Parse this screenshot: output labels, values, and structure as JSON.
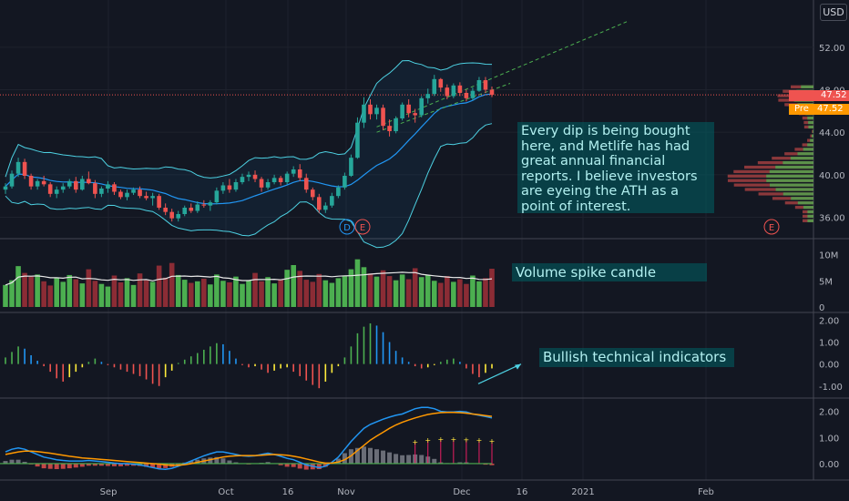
{
  "currency_button": "USD",
  "annotations": {
    "main": "Every dip is being bought here, and Metlife has had great annual financial reports. I believe investors are eyeing the ATH as a point of interest.",
    "volume": "Volume spike candle",
    "indicators": "Bullish technical indicators"
  },
  "price_tags": {
    "last": "47.52",
    "pre_label": "Pre",
    "pre_value": "47.52"
  },
  "event_markers": [
    "D",
    "E",
    "E"
  ],
  "colors": {
    "up": "#26a69a",
    "down": "#ef5350",
    "bollinger": "#4dd0e1",
    "ma": "#2196f3",
    "volume_up": "#4caf50",
    "volume_down": "#8b2c35",
    "macd_fast": "#2196f3",
    "macd_slow": "#ff9800",
    "trend_line": "#4caf50",
    "annotation_bg": "#006064"
  },
  "chart_data": {
    "type": "candlestick",
    "x_axis": {
      "ticks": [
        "Sep",
        "Oct",
        "16",
        "Nov",
        "Dec",
        "16",
        "2021",
        "Feb"
      ]
    },
    "price_pane": {
      "y_ticks": [
        52.0,
        48.0,
        44.0,
        40.0,
        36.0
      ],
      "y_range": [
        34.5,
        55.5
      ],
      "last_price": 47.52,
      "candles": [
        [
          38.6,
          39.2,
          38.2,
          38.9
        ],
        [
          38.9,
          40.4,
          38.7,
          40.1
        ],
        [
          40.1,
          41.6,
          39.8,
          41.2
        ],
        [
          41.2,
          41.5,
          39.6,
          39.9
        ],
        [
          39.9,
          40.1,
          38.6,
          38.9
        ],
        [
          38.9,
          39.6,
          38.6,
          39.4
        ],
        [
          39.4,
          39.9,
          38.9,
          39.1
        ],
        [
          39.1,
          39.3,
          37.9,
          38.2
        ],
        [
          38.2,
          38.9,
          37.8,
          38.6
        ],
        [
          38.6,
          39.2,
          38.3,
          38.9
        ],
        [
          38.9,
          39.6,
          38.7,
          39.4
        ],
        [
          39.4,
          39.8,
          38.3,
          38.6
        ],
        [
          38.6,
          39.9,
          38.5,
          39.6
        ],
        [
          39.6,
          40.3,
          39.1,
          39.2
        ],
        [
          39.2,
          39.5,
          37.8,
          38.2
        ],
        [
          38.2,
          38.9,
          37.9,
          38.7
        ],
        [
          38.7,
          39.4,
          38.3,
          39.1
        ],
        [
          39.1,
          39.3,
          38.1,
          38.4
        ],
        [
          38.4,
          38.6,
          37.7,
          37.9
        ],
        [
          37.9,
          38.6,
          37.6,
          38.3
        ],
        [
          38.3,
          38.8,
          38.1,
          38.6
        ],
        [
          38.6,
          38.9,
          37.8,
          38.0
        ],
        [
          38.0,
          38.4,
          37.6,
          37.8
        ],
        [
          37.8,
          38.3,
          37.1,
          38.0
        ],
        [
          38.0,
          38.2,
          36.7,
          36.9
        ],
        [
          36.9,
          37.3,
          36.2,
          36.5
        ],
        [
          36.5,
          36.8,
          35.6,
          35.9
        ],
        [
          35.9,
          36.6,
          35.6,
          36.3
        ],
        [
          36.3,
          37.1,
          36.1,
          36.9
        ],
        [
          36.9,
          37.3,
          36.4,
          36.6
        ],
        [
          36.6,
          37.5,
          36.4,
          37.2
        ],
        [
          37.2,
          37.6,
          36.9,
          37.1
        ],
        [
          37.1,
          37.6,
          36.6,
          37.4
        ],
        [
          37.4,
          38.8,
          37.2,
          38.5
        ],
        [
          38.5,
          39.3,
          38.2,
          39.0
        ],
        [
          39.0,
          39.6,
          38.3,
          38.6
        ],
        [
          38.6,
          39.6,
          38.4,
          39.3
        ],
        [
          39.3,
          40.1,
          39.1,
          39.8
        ],
        [
          39.8,
          40.3,
          39.4,
          40.0
        ],
        [
          40.0,
          40.4,
          39.3,
          39.6
        ],
        [
          39.6,
          39.8,
          38.4,
          38.8
        ],
        [
          38.8,
          39.6,
          38.6,
          39.3
        ],
        [
          39.3,
          40.0,
          39.1,
          39.7
        ],
        [
          39.7,
          39.9,
          39.0,
          39.3
        ],
        [
          39.3,
          40.3,
          39.1,
          40.1
        ],
        [
          40.1,
          40.8,
          39.8,
          40.5
        ],
        [
          40.5,
          41.0,
          39.4,
          39.7
        ],
        [
          39.7,
          40.1,
          38.3,
          38.6
        ],
        [
          38.6,
          38.8,
          37.6,
          37.9
        ],
        [
          37.9,
          38.2,
          36.4,
          36.7
        ],
        [
          36.7,
          37.4,
          36.4,
          37.1
        ],
        [
          37.1,
          38.3,
          36.9,
          38.0
        ],
        [
          38.0,
          39.0,
          37.8,
          38.8
        ],
        [
          38.8,
          40.2,
          38.6,
          39.9
        ],
        [
          39.9,
          41.9,
          39.8,
          41.6
        ],
        [
          41.6,
          45.4,
          41.5,
          44.9
        ],
        [
          44.9,
          47.3,
          44.4,
          46.6
        ],
        [
          46.6,
          47.1,
          45.2,
          45.7
        ],
        [
          45.7,
          46.6,
          45.2,
          46.3
        ],
        [
          46.3,
          46.6,
          44.2,
          44.6
        ],
        [
          44.6,
          45.2,
          43.6,
          44.1
        ],
        [
          44.1,
          45.5,
          43.9,
          45.3
        ],
        [
          45.3,
          46.8,
          45.1,
          46.6
        ],
        [
          46.6,
          47.1,
          45.4,
          45.8
        ],
        [
          45.8,
          46.2,
          44.9,
          45.6
        ],
        [
          45.6,
          47.4,
          45.4,
          47.2
        ],
        [
          47.2,
          48.1,
          46.7,
          47.6
        ],
        [
          47.6,
          49.4,
          47.4,
          49.0
        ],
        [
          49.0,
          49.1,
          47.8,
          48.2
        ],
        [
          48.2,
          48.5,
          47.1,
          47.4
        ],
        [
          47.4,
          48.6,
          47.2,
          48.4
        ],
        [
          48.4,
          48.7,
          47.4,
          47.7
        ],
        [
          47.7,
          48.0,
          46.9,
          47.2
        ],
        [
          47.2,
          48.2,
          47.0,
          47.9
        ],
        [
          47.9,
          49.2,
          47.8,
          48.9
        ],
        [
          48.9,
          49.2,
          47.7,
          48.0
        ],
        [
          48.0,
          48.3,
          47.3,
          47.52
        ]
      ]
    },
    "volume_pane": {
      "y_ticks": [
        "10M",
        "5M",
        "0"
      ],
      "y_range": [
        0,
        12
      ],
      "values": [
        4.2,
        5.1,
        7.8,
        6.5,
        5.8,
        6.2,
        4.9,
        4.1,
        5.6,
        4.8,
        6.1,
        5.3,
        4.5,
        7.2,
        5.0,
        4.4,
        3.9,
        6.0,
        4.7,
        5.5,
        4.2,
        6.4,
        5.1,
        4.8,
        7.9,
        5.6,
        8.4,
        6.1,
        5.2,
        4.6,
        4.9,
        5.4,
        4.3,
        6.2,
        5.0,
        4.7,
        5.8,
        4.4,
        5.1,
        6.5,
        4.9,
        5.7,
        4.5,
        5.3,
        7.1,
        8.0,
        6.9,
        5.2,
        4.8,
        6.3,
        5.1,
        4.6,
        5.5,
        6.0,
        7.2,
        9.1,
        7.6,
        6.4,
        5.8,
        7.0,
        5.9,
        5.1,
        6.2,
        5.3,
        7.4,
        5.7,
        6.1,
        5.0,
        4.6,
        5.9,
        4.8,
        5.3,
        4.4,
        6.0,
        4.9,
        5.5,
        7.3
      ]
    },
    "histogram_pane": {
      "y_ticks": [
        "2.00",
        "1.00",
        "0.00",
        "-1.00"
      ],
      "y_range": [
        -1.3,
        2.1
      ],
      "values": [
        0.3,
        0.55,
        0.8,
        0.7,
        0.4,
        0.15,
        -0.1,
        -0.35,
        -0.65,
        -0.8,
        -0.6,
        -0.35,
        -0.15,
        0.1,
        0.25,
        0.1,
        -0.05,
        -0.15,
        -0.25,
        -0.35,
        -0.45,
        -0.55,
        -0.7,
        -0.9,
        -1.0,
        -0.6,
        -0.3,
        0.05,
        0.2,
        0.35,
        0.5,
        0.65,
        0.8,
        0.95,
        0.9,
        0.6,
        0.25,
        -0.05,
        -0.15,
        -0.1,
        -0.25,
        -0.4,
        -0.3,
        -0.2,
        -0.15,
        -0.35,
        -0.55,
        -0.75,
        -0.95,
        -1.1,
        -0.8,
        -0.4,
        -0.1,
        0.3,
        0.8,
        1.4,
        1.7,
        1.85,
        1.75,
        1.45,
        1.0,
        0.6,
        0.3,
        0.1,
        -0.1,
        -0.2,
        -0.15,
        -0.05,
        0.1,
        0.2,
        0.25,
        0.1,
        -0.2,
        -0.45,
        -0.6,
        -0.4,
        -0.2
      ]
    },
    "oscillator_pane": {
      "y_ticks": [
        "2.00",
        "1.00",
        "0.00"
      ],
      "y_range": [
        -0.35,
        2.3
      ],
      "fast": [
        0.45,
        0.55,
        0.6,
        0.55,
        0.45,
        0.35,
        0.25,
        0.2,
        0.15,
        0.12,
        0.1,
        0.1,
        0.1,
        0.12,
        0.1,
        0.08,
        0.05,
        0.02,
        0.0,
        0.0,
        -0.02,
        -0.05,
        -0.1,
        -0.15,
        -0.2,
        -0.22,
        -0.18,
        -0.1,
        0.0,
        0.1,
        0.2,
        0.3,
        0.38,
        0.45,
        0.45,
        0.4,
        0.35,
        0.3,
        0.28,
        0.3,
        0.35,
        0.4,
        0.35,
        0.28,
        0.2,
        0.15,
        0.05,
        -0.05,
        -0.1,
        -0.15,
        -0.1,
        0.05,
        0.25,
        0.55,
        0.85,
        1.1,
        1.35,
        1.5,
        1.6,
        1.7,
        1.78,
        1.85,
        1.9,
        2.0,
        2.1,
        2.15,
        2.15,
        2.1,
        2.0,
        1.98,
        1.98,
        2.0,
        1.98,
        1.9,
        1.85,
        1.8,
        1.75
      ],
      "slow": [
        0.35,
        0.4,
        0.45,
        0.48,
        0.48,
        0.46,
        0.43,
        0.4,
        0.36,
        0.32,
        0.28,
        0.25,
        0.22,
        0.2,
        0.18,
        0.16,
        0.14,
        0.12,
        0.1,
        0.08,
        0.06,
        0.04,
        0.02,
        0.0,
        -0.02,
        -0.05,
        -0.06,
        -0.06,
        -0.04,
        0.0,
        0.05,
        0.1,
        0.15,
        0.2,
        0.25,
        0.28,
        0.3,
        0.31,
        0.31,
        0.31,
        0.32,
        0.34,
        0.35,
        0.34,
        0.32,
        0.28,
        0.24,
        0.18,
        0.12,
        0.06,
        0.02,
        0.02,
        0.06,
        0.15,
        0.3,
        0.5,
        0.7,
        0.9,
        1.05,
        1.2,
        1.35,
        1.48,
        1.58,
        1.67,
        1.75,
        1.82,
        1.88,
        1.92,
        1.95,
        1.96,
        1.96,
        1.95,
        1.93,
        1.9,
        1.87,
        1.84,
        1.81
      ],
      "bars": [
        0.1,
        0.15,
        0.15,
        0.07,
        -0.03,
        -0.11,
        -0.18,
        -0.2,
        -0.21,
        -0.2,
        -0.18,
        -0.15,
        -0.12,
        -0.08,
        -0.08,
        -0.08,
        -0.09,
        -0.1,
        -0.1,
        -0.08,
        -0.08,
        -0.09,
        -0.12,
        -0.15,
        -0.18,
        -0.17,
        -0.12,
        -0.04,
        0.04,
        0.1,
        0.15,
        0.2,
        0.23,
        0.25,
        0.2,
        0.12,
        0.05,
        -0.01,
        -0.03,
        -0.01,
        0.03,
        0.06,
        0.0,
        -0.06,
        -0.12,
        -0.13,
        -0.19,
        -0.23,
        -0.22,
        -0.21,
        -0.12,
        0.03,
        0.19,
        0.4,
        0.55,
        0.6,
        0.65,
        0.6,
        0.55,
        0.5,
        0.43,
        0.37,
        0.32,
        0.33,
        0.35,
        0.33,
        0.27,
        0.18,
        0.05,
        0.02,
        0.02,
        0.05,
        0.05,
        0.0,
        -0.02,
        -0.04,
        -0.06
      ]
    }
  }
}
